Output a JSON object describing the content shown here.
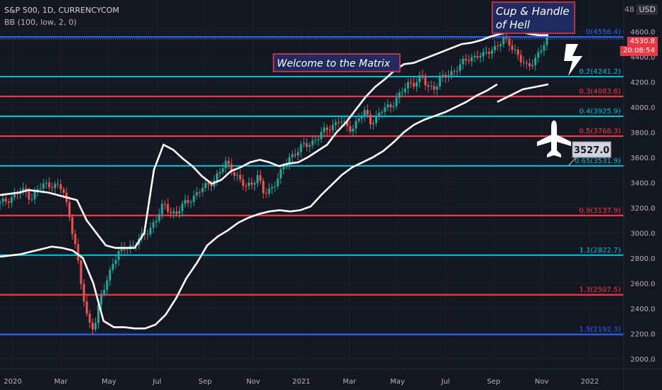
{
  "header": {
    "symbol_line": "S&P 500, 1D, CURRENCYCOM",
    "indicator_line": "BB (100, low, 2, 0)",
    "currency": "USD",
    "top_right_tick": "48"
  },
  "price_tag": {
    "price": "4530.8",
    "countdown": "20:08:54"
  },
  "colors": {
    "background": "#131722",
    "red": "#f23645",
    "cyan": "#00bcd4",
    "blue": "#2962ff",
    "up": "#26a69a",
    "down": "#ef5350",
    "band": "#ffffff"
  },
  "annotations": {
    "cup_handle": [
      "Cup & Handle",
      "of Hell"
    ],
    "matrix": "Welcome to the Matrix",
    "target_label": "3527.0"
  },
  "chart_data": {
    "type": "candlestick",
    "title": "S&P 500, 1D, CURRENCYCOM",
    "y_ticks": [
      2000,
      2200,
      2400,
      2600,
      2800,
      3000,
      3200,
      3400,
      3600,
      3800,
      4000,
      4200,
      4400,
      4600
    ],
    "ylim": [
      1920,
      4850
    ],
    "x_ticks": [
      "2020",
      "Mar",
      "May",
      "Jul",
      "Sep",
      "Nov",
      "2021",
      "Mar",
      "May",
      "Jul",
      "Sep",
      "Nov",
      "2022"
    ],
    "fib_levels": [
      {
        "label": "0(4556.4)",
        "value": 4556.4,
        "color": "#2962ff"
      },
      {
        "label": "0.2(4241.2)",
        "value": 4241.2,
        "color": "#00bcd4"
      },
      {
        "label": "0.3(4083.6)",
        "value": 4083.6,
        "color": "#f23645"
      },
      {
        "label": "0.4(3925.9)",
        "value": 3925.9,
        "color": "#00bcd4"
      },
      {
        "label": "0.5(3768.3)",
        "value": 3768.3,
        "color": "#f23645"
      },
      {
        "label": "0.65(3531.9)",
        "value": 3531.9,
        "color": "#00bcd4"
      },
      {
        "label": "0.9(3137.9)",
        "value": 3137.9,
        "color": "#f23645"
      },
      {
        "label": "1.1(2822.7)",
        "value": 2822.7,
        "color": "#00bcd4"
      },
      {
        "label": "1.3(2507.5)",
        "value": 2507.5,
        "color": "#f23645"
      },
      {
        "label": "1.5(2192.3)",
        "value": 2192.3,
        "color": "#2962ff"
      }
    ],
    "price_path": [
      3230,
      3260,
      3290,
      3320,
      3330,
      3280,
      3340,
      3380,
      3390,
      3370,
      3340,
      3150,
      2900,
      2550,
      2300,
      2250,
      2480,
      2620,
      2780,
      2840,
      2880,
      2900,
      2940,
      2980,
      3050,
      3120,
      3220,
      3180,
      3150,
      3210,
      3260,
      3300,
      3340,
      3380,
      3420,
      3480,
      3560,
      3500,
      3420,
      3360,
      3400,
      3450,
      3300,
      3350,
      3420,
      3500,
      3600,
      3640,
      3680,
      3700,
      3740,
      3780,
      3820,
      3860,
      3900,
      3840,
      3830,
      3910,
      3950,
      3880,
      3930,
      3980,
      4000,
      4070,
      4120,
      4180,
      4200,
      4240,
      4150,
      4160,
      4220,
      4240,
      4280,
      4330,
      4360,
      4390,
      4420,
      4400,
      4450,
      4490,
      4530,
      4500,
      4450,
      4360,
      4300,
      4390,
      4450,
      4530
    ],
    "upper_band": [
      3300,
      3310,
      3320,
      3340,
      3330,
      3320,
      3300,
      3280,
      3260,
      3100,
      3000,
      2900,
      2880,
      2880,
      2880,
      3000,
      3500,
      3700,
      3660,
      3590,
      3530,
      3450,
      3390,
      3420,
      3490,
      3520,
      3560,
      3580,
      3560,
      3530,
      3550,
      3560,
      3600,
      3650,
      3700,
      3800,
      3880,
      3980,
      4080,
      4160,
      4220,
      4290,
      4340,
      4350,
      4380,
      4410,
      4440,
      4470,
      4500,
      4510,
      4530,
      4560,
      4580,
      4600,
      4600,
      4580,
      4570,
      4570
    ],
    "lower_band": [
      2810,
      2820,
      2830,
      2850,
      2870,
      2890,
      2880,
      2860,
      2800,
      2600,
      2300,
      2250,
      2250,
      2240,
      2240,
      2270,
      2350,
      2480,
      2640,
      2760,
      2900,
      2970,
      3020,
      3080,
      3120,
      3150,
      3170,
      3180,
      3170,
      3180,
      3210,
      3300,
      3380,
      3460,
      3520,
      3560,
      3600,
      3650,
      3720,
      3800,
      3860,
      3900,
      3930,
      3960,
      4000,
      4040,
      4090,
      4130,
      4180
    ],
    "lower_band_after_gap": [
      4040,
      4090,
      4140,
      4160,
      4180
    ],
    "last_price": 4530.8,
    "last_price_label": "4530.8"
  }
}
